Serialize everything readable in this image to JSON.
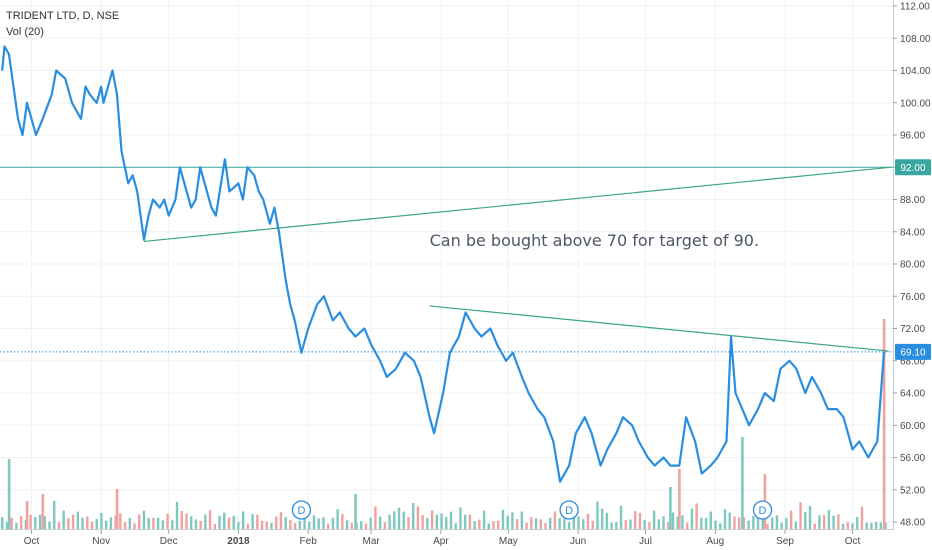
{
  "header": {
    "title": "TRIDENT LTD, D, NSE",
    "volume_indicator": "Vol (20)"
  },
  "annotation": {
    "text": "Can be bought above 70 for target of 90."
  },
  "price_labels": {
    "target": "92.00",
    "current": "69.10"
  },
  "dividend_marker": "D",
  "colors": {
    "price_line": "#2a8ee0",
    "trend_line": "#3aa683",
    "target_line": "#3aa6a0",
    "current_line": "#2a8ee0",
    "volume_up": "#7fc8bf",
    "volume_down": "#f2a1a1",
    "grid": "#eef1f5"
  },
  "chart_data": {
    "type": "line",
    "title": "TRIDENT LTD, D, NSE",
    "xlabel": "",
    "ylabel": "",
    "ylim": [
      48,
      112
    ],
    "grid": true,
    "legend": "none",
    "x_tick_labels": [
      "Oct",
      "Nov",
      "Dec",
      "2018",
      "Feb",
      "Mar",
      "Apr",
      "May",
      "Jun",
      "Jul",
      "Aug",
      "Sep",
      "Oct"
    ],
    "x_tick_positions": [
      "2017-10-01",
      "2017-11-01",
      "2017-12-01",
      "2018-01-01",
      "2018-02-01",
      "2018-03-01",
      "2018-04-01",
      "2018-05-01",
      "2018-06-01",
      "2018-07-01",
      "2018-08-01",
      "2018-09-01",
      "2018-10-01"
    ],
    "x_range": [
      "2017-09-17",
      "2018-10-19"
    ],
    "y_ticks": [
      48,
      52,
      56,
      60,
      64,
      68,
      72,
      76,
      80,
      84,
      88,
      92,
      96,
      100,
      104,
      108,
      112
    ],
    "series": [
      {
        "values": [
          [
            "2017-09-18",
            104
          ],
          [
            "2017-09-19",
            107
          ],
          [
            "2017-09-21",
            106
          ],
          [
            "2017-09-25",
            98
          ],
          [
            "2017-09-27",
            96
          ],
          [
            "2017-09-29",
            100
          ],
          [
            "2017-10-03",
            96
          ],
          [
            "2017-10-06",
            98
          ],
          [
            "2017-10-10",
            101
          ],
          [
            "2017-10-12",
            104
          ],
          [
            "2017-10-16",
            103
          ],
          [
            "2017-10-19",
            100
          ],
          [
            "2017-10-23",
            98
          ],
          [
            "2017-10-25",
            102
          ],
          [
            "2017-10-27",
            101
          ],
          [
            "2017-10-30",
            100
          ],
          [
            "2017-11-01",
            102
          ],
          [
            "2017-11-02",
            100
          ],
          [
            "2017-11-06",
            104
          ],
          [
            "2017-11-08",
            101
          ],
          [
            "2017-11-10",
            94
          ],
          [
            "2017-11-13",
            90
          ],
          [
            "2017-11-15",
            91
          ],
          [
            "2017-11-17",
            89
          ],
          [
            "2017-11-20",
            83
          ],
          [
            "2017-11-22",
            86
          ],
          [
            "2017-11-24",
            88
          ],
          [
            "2017-11-27",
            87
          ],
          [
            "2017-11-29",
            88
          ],
          [
            "2017-12-01",
            86
          ],
          [
            "2017-12-04",
            88
          ],
          [
            "2017-12-06",
            92
          ],
          [
            "2017-12-08",
            90
          ],
          [
            "2017-12-11",
            87
          ],
          [
            "2017-12-13",
            88
          ],
          [
            "2017-12-15",
            92
          ],
          [
            "2017-12-18",
            89
          ],
          [
            "2017-12-20",
            87
          ],
          [
            "2017-12-22",
            86
          ],
          [
            "2017-12-26",
            93
          ],
          [
            "2017-12-28",
            89
          ],
          [
            "2018-01-01",
            90
          ],
          [
            "2018-01-03",
            88
          ],
          [
            "2018-01-05",
            92
          ],
          [
            "2018-01-08",
            91
          ],
          [
            "2018-01-10",
            89
          ],
          [
            "2018-01-12",
            88
          ],
          [
            "2018-01-15",
            85
          ],
          [
            "2018-01-17",
            87
          ],
          [
            "2018-01-19",
            84
          ],
          [
            "2018-01-22",
            78
          ],
          [
            "2018-01-24",
            75
          ],
          [
            "2018-01-26",
            73
          ],
          [
            "2018-01-29",
            69
          ],
          [
            "2018-02-01",
            72
          ],
          [
            "2018-02-05",
            75
          ],
          [
            "2018-02-08",
            76
          ],
          [
            "2018-02-12",
            73
          ],
          [
            "2018-02-15",
            74
          ],
          [
            "2018-02-19",
            72
          ],
          [
            "2018-02-22",
            71
          ],
          [
            "2018-02-26",
            72
          ],
          [
            "2018-03-01",
            70
          ],
          [
            "2018-03-05",
            68
          ],
          [
            "2018-03-08",
            66
          ],
          [
            "2018-03-12",
            67
          ],
          [
            "2018-03-16",
            69
          ],
          [
            "2018-03-20",
            68
          ],
          [
            "2018-03-23",
            66
          ],
          [
            "2018-03-27",
            61
          ],
          [
            "2018-03-29",
            59
          ],
          [
            "2018-04-02",
            64
          ],
          [
            "2018-04-05",
            69
          ],
          [
            "2018-04-09",
            71
          ],
          [
            "2018-04-12",
            74
          ],
          [
            "2018-04-16",
            72
          ],
          [
            "2018-04-19",
            71
          ],
          [
            "2018-04-23",
            72
          ],
          [
            "2018-04-26",
            70
          ],
          [
            "2018-04-30",
            68
          ],
          [
            "2018-05-03",
            69
          ],
          [
            "2018-05-07",
            66
          ],
          [
            "2018-05-10",
            64
          ],
          [
            "2018-05-14",
            62
          ],
          [
            "2018-05-17",
            61
          ],
          [
            "2018-05-21",
            58
          ],
          [
            "2018-05-24",
            53
          ],
          [
            "2018-05-28",
            55
          ],
          [
            "2018-05-31",
            59
          ],
          [
            "2018-06-04",
            61
          ],
          [
            "2018-06-07",
            59
          ],
          [
            "2018-06-11",
            55
          ],
          [
            "2018-06-14",
            57
          ],
          [
            "2018-06-18",
            59
          ],
          [
            "2018-06-21",
            61
          ],
          [
            "2018-06-25",
            60
          ],
          [
            "2018-06-28",
            58
          ],
          [
            "2018-07-02",
            56
          ],
          [
            "2018-07-05",
            55
          ],
          [
            "2018-07-09",
            56
          ],
          [
            "2018-07-12",
            55
          ],
          [
            "2018-07-16",
            55
          ],
          [
            "2018-07-19",
            61
          ],
          [
            "2018-07-23",
            58
          ],
          [
            "2018-07-26",
            54
          ],
          [
            "2018-07-30",
            55
          ],
          [
            "2018-08-02",
            56
          ],
          [
            "2018-08-06",
            58
          ],
          [
            "2018-08-08",
            71
          ],
          [
            "2018-08-10",
            64
          ],
          [
            "2018-08-13",
            62
          ],
          [
            "2018-08-16",
            60
          ],
          [
            "2018-08-20",
            62
          ],
          [
            "2018-08-23",
            64
          ],
          [
            "2018-08-27",
            63
          ],
          [
            "2018-08-30",
            67
          ],
          [
            "2018-09-03",
            68
          ],
          [
            "2018-09-06",
            67
          ],
          [
            "2018-09-10",
            64
          ],
          [
            "2018-09-13",
            66
          ],
          [
            "2018-09-17",
            64
          ],
          [
            "2018-09-20",
            62
          ],
          [
            "2018-09-24",
            62
          ],
          [
            "2018-09-27",
            61
          ],
          [
            "2018-10-01",
            57
          ],
          [
            "2018-10-04",
            58
          ],
          [
            "2018-10-08",
            56
          ],
          [
            "2018-10-10",
            57
          ],
          [
            "2018-10-12",
            58
          ],
          [
            "2018-10-15",
            69.1
          ]
        ]
      }
    ],
    "annotations": [
      {
        "type": "horizontal_line",
        "y": 92.0,
        "label": "92.00"
      },
      {
        "type": "horizontal_dotted_line",
        "y": 69.1,
        "label": "69.10"
      },
      {
        "type": "trend_line",
        "from": [
          "2017-11-20",
          82.8
        ],
        "to": [
          "2018-10-18",
          92.0
        ]
      },
      {
        "type": "trend_line",
        "from": [
          "2018-03-27",
          74.8
        ],
        "to": [
          "2018-10-17",
          69.2
        ]
      },
      {
        "type": "text",
        "text": "Can be bought above 70 for target of 90.",
        "at": [
          "2018-03-27",
          83
        ]
      }
    ],
    "dividend_events": [
      "2018-01-29",
      "2018-05-28",
      "2018-08-22"
    ]
  }
}
